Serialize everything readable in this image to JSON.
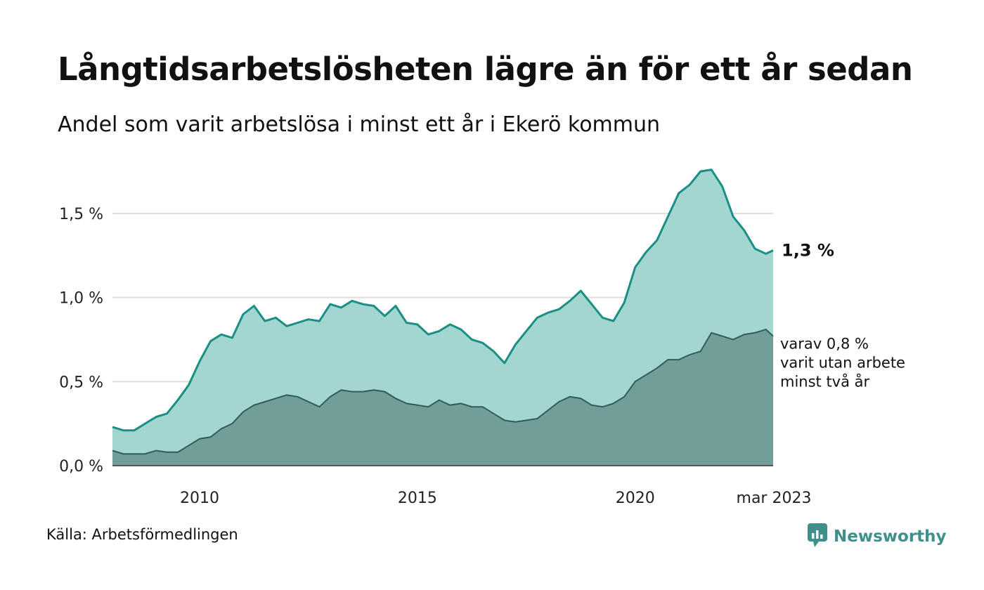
{
  "title": "Långtidsarbetslösheten lägre än för ett år sedan",
  "subtitle": "Andel som varit arbetslösa i minst ett år i Ekerö kommun",
  "source": "Källa: Arbetsförmedlingen",
  "brand": {
    "name": "Newsworthy",
    "icon": "newsworthy-logo-icon"
  },
  "colors": {
    "total_line": "#1a8f85",
    "total_fill": "#a3d6d0",
    "sub_line": "#2f5d58",
    "sub_fill": "#719e98",
    "grid": "#dddddd",
    "brand": "#3f8f8a"
  },
  "chart_data": {
    "type": "area",
    "x_tick_labels": [
      "2010",
      "2015",
      "2020",
      "mar 2023"
    ],
    "y_tick_labels": [
      "0,0 %",
      "0,5 %",
      "1,0 %",
      "1,5 %"
    ],
    "y_ticks": [
      0,
      0.5,
      1.0,
      1.5
    ],
    "ylim": [
      0,
      1.8
    ],
    "xlim": [
      "2008-01",
      "2023-03"
    ],
    "grid": true,
    "end_label_total": "1,3 %",
    "end_label_sub": [
      "varav 0,8 %",
      "varit utan arbete",
      "minst två år"
    ],
    "series": [
      {
        "key": "total",
        "points": [
          [
            "2008-01",
            0.23
          ],
          [
            "2008-04",
            0.21
          ],
          [
            "2008-07",
            0.21
          ],
          [
            "2008-10",
            0.25
          ],
          [
            "2009-01",
            0.29
          ],
          [
            "2009-04",
            0.31
          ],
          [
            "2009-07",
            0.39
          ],
          [
            "2009-10",
            0.48
          ],
          [
            "2010-01",
            0.62
          ],
          [
            "2010-04",
            0.74
          ],
          [
            "2010-07",
            0.78
          ],
          [
            "2010-10",
            0.76
          ],
          [
            "2011-01",
            0.9
          ],
          [
            "2011-04",
            0.95
          ],
          [
            "2011-07",
            0.86
          ],
          [
            "2011-10",
            0.88
          ],
          [
            "2012-01",
            0.83
          ],
          [
            "2012-04",
            0.85
          ],
          [
            "2012-07",
            0.87
          ],
          [
            "2012-10",
            0.86
          ],
          [
            "2013-01",
            0.96
          ],
          [
            "2013-04",
            0.94
          ],
          [
            "2013-07",
            0.98
          ],
          [
            "2013-10",
            0.96
          ],
          [
            "2014-01",
            0.95
          ],
          [
            "2014-04",
            0.89
          ],
          [
            "2014-07",
            0.95
          ],
          [
            "2014-10",
            0.85
          ],
          [
            "2015-01",
            0.84
          ],
          [
            "2015-04",
            0.78
          ],
          [
            "2015-07",
            0.8
          ],
          [
            "2015-10",
            0.84
          ],
          [
            "2016-01",
            0.81
          ],
          [
            "2016-04",
            0.75
          ],
          [
            "2016-07",
            0.73
          ],
          [
            "2016-10",
            0.68
          ],
          [
            "2017-01",
            0.61
          ],
          [
            "2017-04",
            0.72
          ],
          [
            "2017-07",
            0.8
          ],
          [
            "2017-10",
            0.88
          ],
          [
            "2018-01",
            0.91
          ],
          [
            "2018-04",
            0.93
          ],
          [
            "2018-07",
            0.98
          ],
          [
            "2018-10",
            1.04
          ],
          [
            "2019-01",
            0.96
          ],
          [
            "2019-04",
            0.88
          ],
          [
            "2019-07",
            0.86
          ],
          [
            "2019-10",
            0.97
          ],
          [
            "2020-01",
            1.18
          ],
          [
            "2020-04",
            1.27
          ],
          [
            "2020-07",
            1.34
          ],
          [
            "2020-10",
            1.48
          ],
          [
            "2021-01",
            1.62
          ],
          [
            "2021-04",
            1.67
          ],
          [
            "2021-07",
            1.75
          ],
          [
            "2021-10",
            1.76
          ],
          [
            "2022-01",
            1.66
          ],
          [
            "2022-04",
            1.48
          ],
          [
            "2022-07",
            1.4
          ],
          [
            "2022-10",
            1.29
          ],
          [
            "2023-01",
            1.26
          ],
          [
            "2023-03",
            1.28
          ]
        ]
      },
      {
        "key": "sub",
        "points": [
          [
            "2008-01",
            0.09
          ],
          [
            "2008-04",
            0.07
          ],
          [
            "2008-07",
            0.07
          ],
          [
            "2008-10",
            0.07
          ],
          [
            "2009-01",
            0.09
          ],
          [
            "2009-04",
            0.08
          ],
          [
            "2009-07",
            0.08
          ],
          [
            "2009-10",
            0.12
          ],
          [
            "2010-01",
            0.16
          ],
          [
            "2010-04",
            0.17
          ],
          [
            "2010-07",
            0.22
          ],
          [
            "2010-10",
            0.25
          ],
          [
            "2011-01",
            0.32
          ],
          [
            "2011-04",
            0.36
          ],
          [
            "2011-07",
            0.38
          ],
          [
            "2011-10",
            0.4
          ],
          [
            "2012-01",
            0.42
          ],
          [
            "2012-04",
            0.41
          ],
          [
            "2012-07",
            0.38
          ],
          [
            "2012-10",
            0.35
          ],
          [
            "2013-01",
            0.41
          ],
          [
            "2013-04",
            0.45
          ],
          [
            "2013-07",
            0.44
          ],
          [
            "2013-10",
            0.44
          ],
          [
            "2014-01",
            0.45
          ],
          [
            "2014-04",
            0.44
          ],
          [
            "2014-07",
            0.4
          ],
          [
            "2014-10",
            0.37
          ],
          [
            "2015-01",
            0.36
          ],
          [
            "2015-04",
            0.35
          ],
          [
            "2015-07",
            0.39
          ],
          [
            "2015-10",
            0.36
          ],
          [
            "2016-01",
            0.37
          ],
          [
            "2016-04",
            0.35
          ],
          [
            "2016-07",
            0.35
          ],
          [
            "2016-10",
            0.31
          ],
          [
            "2017-01",
            0.27
          ],
          [
            "2017-04",
            0.26
          ],
          [
            "2017-07",
            0.27
          ],
          [
            "2017-10",
            0.28
          ],
          [
            "2018-01",
            0.33
          ],
          [
            "2018-04",
            0.38
          ],
          [
            "2018-07",
            0.41
          ],
          [
            "2018-10",
            0.4
          ],
          [
            "2019-01",
            0.36
          ],
          [
            "2019-04",
            0.35
          ],
          [
            "2019-07",
            0.37
          ],
          [
            "2019-10",
            0.41
          ],
          [
            "2020-01",
            0.5
          ],
          [
            "2020-04",
            0.54
          ],
          [
            "2020-07",
            0.58
          ],
          [
            "2020-10",
            0.63
          ],
          [
            "2021-01",
            0.63
          ],
          [
            "2021-04",
            0.66
          ],
          [
            "2021-07",
            0.68
          ],
          [
            "2021-10",
            0.79
          ],
          [
            "2022-01",
            0.77
          ],
          [
            "2022-04",
            0.75
          ],
          [
            "2022-07",
            0.78
          ],
          [
            "2022-10",
            0.79
          ],
          [
            "2023-01",
            0.81
          ],
          [
            "2023-03",
            0.77
          ]
        ]
      }
    ]
  }
}
